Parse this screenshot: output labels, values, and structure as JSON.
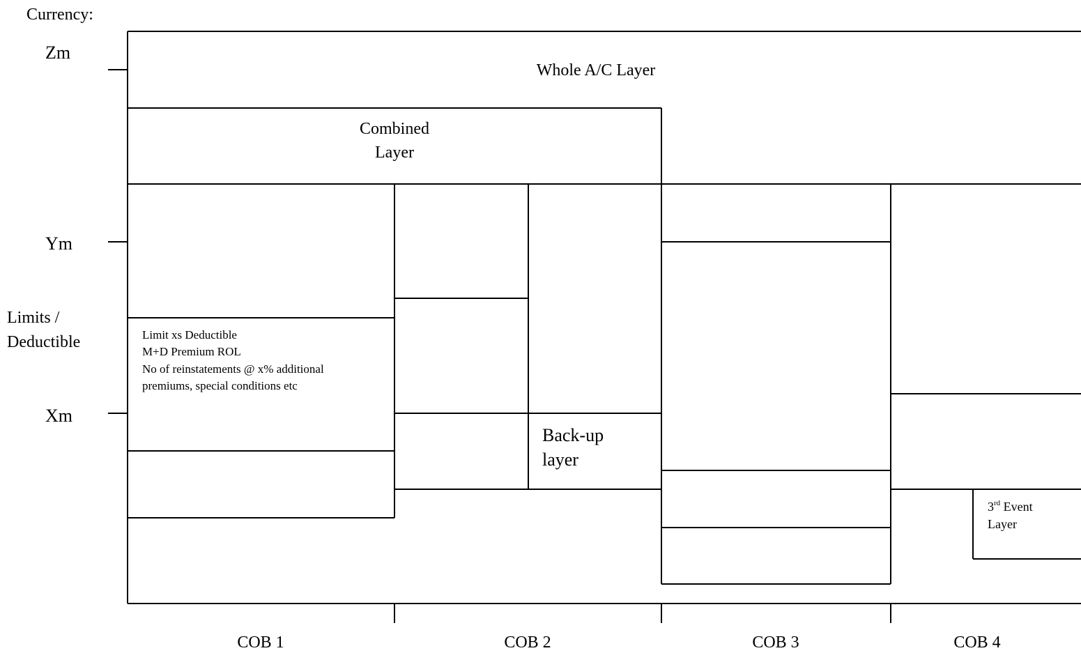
{
  "currency_label": "Currency:",
  "y_axis": {
    "title_line1": "Limits /",
    "title_line2": "Deductible",
    "ticks": [
      "Zm",
      "Ym",
      "Xm"
    ]
  },
  "x_axis": {
    "categories": [
      "COB 1",
      "COB 2",
      "COB 3",
      "COB 4"
    ]
  },
  "layers": {
    "whole_ac": "Whole A/C Layer",
    "combined_line1": "Combined",
    "combined_line2": "Layer",
    "cob1_details": [
      "Limit xs Deductible",
      "M+D Premium ROL",
      "No of reinstatements @ x% additional",
      "premiums, special conditions etc"
    ],
    "backup_line1": "Back-up",
    "backup_line2": "layer",
    "third_event_number": "3",
    "third_event_suffix": "rd",
    "third_event_word": " Event",
    "third_event_line2": "Layer"
  }
}
